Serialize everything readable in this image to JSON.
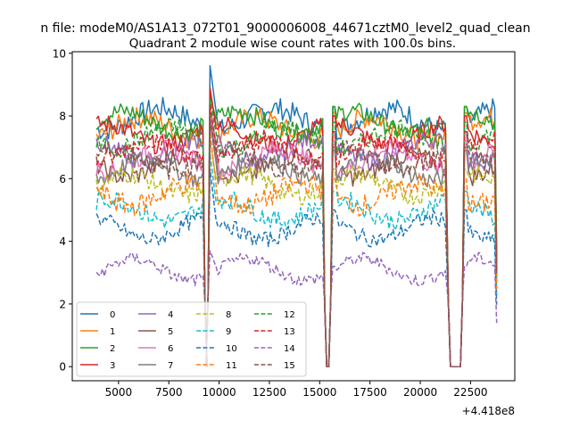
{
  "suptitle": "n file: modeM0/AS1A13_072T01_9000006008_44671cztM0_level2_quad_clean",
  "chart_data": {
    "type": "line",
    "title": "Quadrant 2 module wise count rates with 100.0s bins.",
    "xlabel": "",
    "ylabel": "",
    "offset_label": "+4.418e8",
    "xlim": [
      2700,
      24700
    ],
    "ylim": [
      -0.45,
      10.05
    ],
    "xticks": [
      5000,
      7500,
      10000,
      12500,
      15000,
      17500,
      20000,
      22500
    ],
    "xtick_labels": [
      "5000",
      "7500",
      "10000",
      "12500",
      "15000",
      "17500",
      "20000",
      "22500"
    ],
    "yticks": [
      0,
      2,
      4,
      6,
      8,
      10
    ],
    "ytick_labels": [
      "0",
      "2",
      "4",
      "6",
      "8",
      "10"
    ],
    "grid": false,
    "legend_position": "lower-left",
    "segments": [
      [
        3900,
        9200
      ],
      [
        9550,
        15150
      ],
      [
        15650,
        21300
      ],
      [
        22200,
        23700
      ]
    ],
    "gap_value": 0,
    "series": [
      {
        "name": "0",
        "color": "#1f77b4",
        "dash": "solid",
        "level": 7.9,
        "noise": 0.35,
        "peak": 9.6,
        "edge": 8.3
      },
      {
        "name": "1",
        "color": "#ff7f0e",
        "dash": "solid",
        "level": 7.6,
        "noise": 0.35,
        "peak": 8.7,
        "edge": 8.1
      },
      {
        "name": "2",
        "color": "#2ca02c",
        "dash": "solid",
        "level": 7.8,
        "noise": 0.3,
        "peak": 8.6,
        "edge": 8.3
      },
      {
        "name": "3",
        "color": "#d62728",
        "dash": "solid",
        "level": 7.4,
        "noise": 0.3,
        "peak": 8.9,
        "edge": 8.0
      },
      {
        "name": "4",
        "color": "#9467bd",
        "dash": "solid",
        "level": 6.9,
        "noise": 0.3,
        "peak": 8.2,
        "edge": 7.5
      },
      {
        "name": "5",
        "color": "#8c564b",
        "dash": "solid",
        "level": 6.4,
        "noise": 0.3,
        "peak": 8.0,
        "edge": 7.0
      },
      {
        "name": "6",
        "color": "#e377c2",
        "dash": "solid",
        "level": 6.6,
        "noise": 0.3,
        "peak": 8.1,
        "edge": 7.2
      },
      {
        "name": "7",
        "color": "#7f7f7f",
        "dash": "solid",
        "level": 6.3,
        "noise": 0.3,
        "peak": 7.8,
        "edge": 6.9
      },
      {
        "name": "8",
        "color": "#bcbd22",
        "dash": "dashed",
        "level": 5.8,
        "noise": 0.3,
        "peak": 7.2,
        "edge": 6.3
      },
      {
        "name": "9",
        "color": "#17becf",
        "dash": "dashed",
        "level": 5.0,
        "noise": 0.3,
        "peak": 6.8,
        "edge": 5.6
      },
      {
        "name": "10",
        "color": "#1f77b4",
        "dash": "dashed",
        "level": 4.4,
        "noise": 0.25,
        "peak": 6.3,
        "edge": 5.0
      },
      {
        "name": "11",
        "color": "#ff7f0e",
        "dash": "dashed",
        "level": 5.5,
        "noise": 0.35,
        "peak": 7.5,
        "edge": 6.0
      },
      {
        "name": "12",
        "color": "#2ca02c",
        "dash": "dashed",
        "level": 7.3,
        "noise": 0.3,
        "peak": 8.5,
        "edge": 7.8
      },
      {
        "name": "13",
        "color": "#d62728",
        "dash": "dashed",
        "level": 6.9,
        "noise": 0.3,
        "peak": 8.3,
        "edge": 7.5
      },
      {
        "name": "14",
        "color": "#9467bd",
        "dash": "dashed",
        "level": 3.1,
        "noise": 0.2,
        "peak": 3.7,
        "edge": 3.2
      },
      {
        "name": "15",
        "color": "#8c564b",
        "dash": "dashed",
        "level": 6.6,
        "noise": 0.3,
        "peak": 7.9,
        "edge": 7.1
      }
    ]
  }
}
